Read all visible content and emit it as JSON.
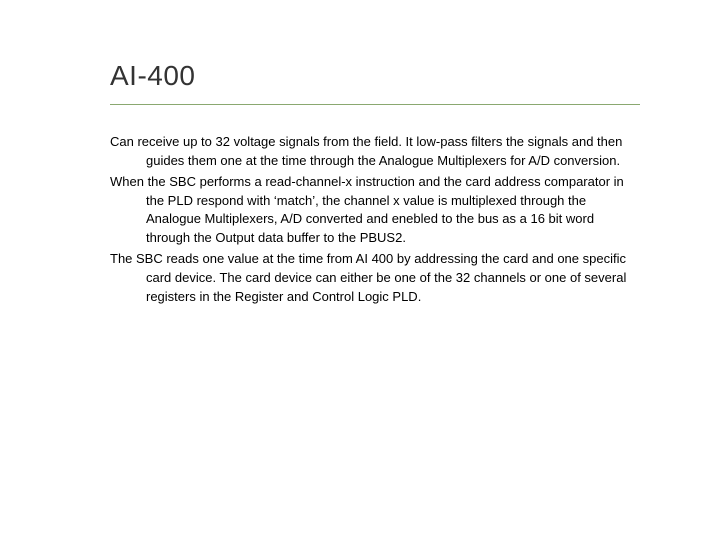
{
  "slide": {
    "title": "AI-400",
    "divider_color": "#8aa870",
    "paragraphs": [
      "Can receive up to 32 voltage signals from the field. It low-pass filters the signals and then guides them one at the time through the Analogue Multiplexers for A/D conversion.",
      "When the SBC performs a read-channel-x instruction and the card address comparator in the PLD respond with ‘match’, the channel x value is multiplexed through the Analogue Multiplexers, A/D converted and enebled to the bus as a 16 bit word through the Output data buffer to the PBUS2.",
      "The SBC reads one value at the time from AI 400 by addressing the card and one specific card device. The card device can either be one of the 32 channels or one of several registers in the Register and Control Logic PLD."
    ]
  },
  "colors": {
    "background": "#ffffff",
    "title_text": "#333333",
    "body_text": "#000000",
    "divider": "#8aa870"
  },
  "typography": {
    "title_fontsize": 28,
    "title_weight": 400,
    "body_fontsize": 13,
    "body_lineheight": 1.45,
    "font_family": "Verdana, Geneva, sans-serif"
  }
}
